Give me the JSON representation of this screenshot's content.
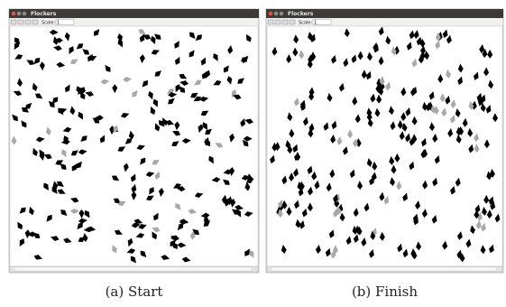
{
  "windows": [
    {
      "title": "Flockers",
      "scale_label": "Scale:",
      "scale_value": "1",
      "caption": "(a) Start"
    },
    {
      "title": "Flockers",
      "scale_label": "Scale:",
      "scale_value": "1",
      "caption": "(b) Finish"
    }
  ]
}
